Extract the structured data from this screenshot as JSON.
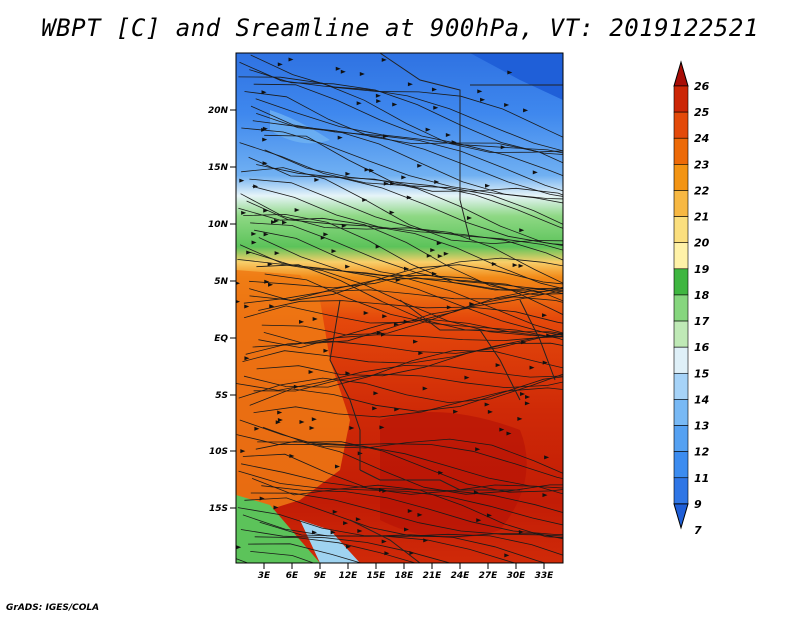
{
  "title": "WBPT [C] and Sreamline at 900hPa, VT: 2019122521",
  "credit": "GrADS: IGES/COLA",
  "map": {
    "lat_labels": [
      "20N",
      "15N",
      "10N",
      "5N",
      "EQ",
      "5S",
      "10S",
      "15S"
    ],
    "lon_labels": [
      "3E",
      "6E",
      "9E",
      "12E",
      "15E",
      "18E",
      "21E",
      "24E",
      "27E",
      "30E",
      "33E"
    ]
  },
  "colorbar": {
    "labels": [
      "7",
      "9",
      "11",
      "12",
      "13",
      "14",
      "15",
      "16",
      "17",
      "18",
      "19",
      "20",
      "21",
      "22",
      "23",
      "24",
      "25",
      "26"
    ],
    "colors": [
      "#1f5fd8",
      "#2f76e6",
      "#3c8cf0",
      "#55a1f2",
      "#78b9f5",
      "#a6d3f8",
      "#dff0f8",
      "#bfe9b6",
      "#86d67e",
      "#3fb640",
      "#fff2a8",
      "#fbdf7e",
      "#f7b843",
      "#f39413",
      "#ed6a08",
      "#e34a0a",
      "#cc2606",
      "#a80d06"
    ]
  }
}
